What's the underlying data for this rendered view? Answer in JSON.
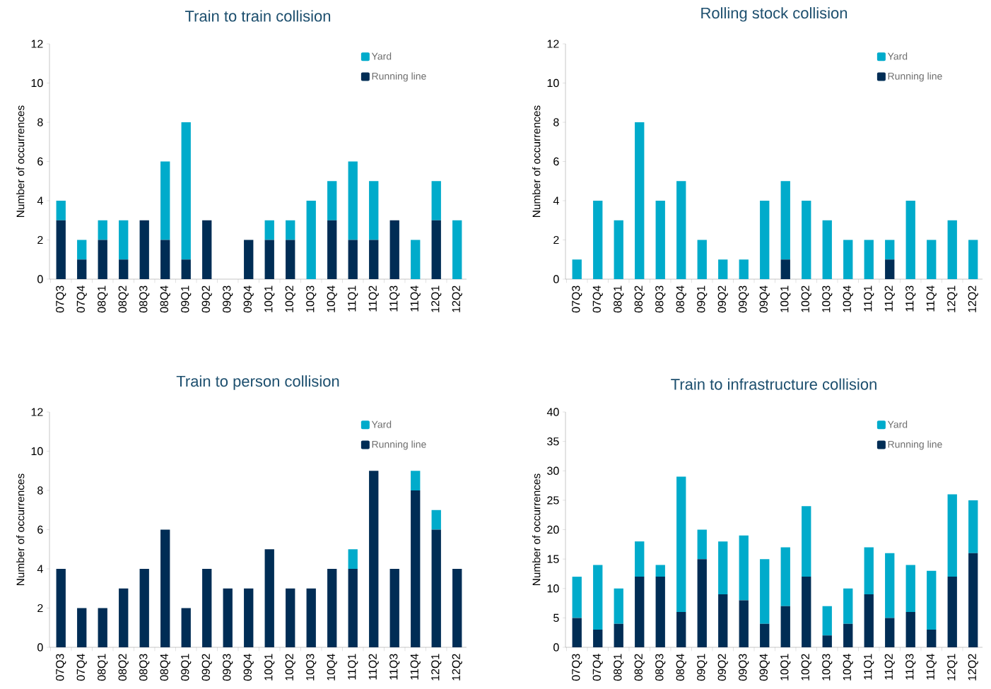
{
  "chart_data": [
    {
      "type": "bar",
      "title": "Train to train collision",
      "ylabel": "Number of occurrences",
      "stacked": true,
      "legend": "top right",
      "categories": [
        "07Q3",
        "07Q4",
        "08Q1",
        "08Q2",
        "08Q3",
        "08Q4",
        "09Q1",
        "09Q2",
        "09Q3",
        "09Q4",
        "10Q1",
        "10Q2",
        "10Q3",
        "10Q4",
        "11Q1",
        "11Q2",
        "11Q3",
        "11Q4",
        "12Q1",
        "12Q2"
      ],
      "ylim": [
        0,
        12
      ],
      "yticks": [
        0,
        2,
        4,
        6,
        8,
        10,
        12
      ],
      "series": [
        {
          "name": "Running line",
          "color": "#002d55",
          "values": [
            3,
            1,
            2,
            1,
            3,
            2,
            1,
            3,
            0,
            2,
            2,
            2,
            0,
            3,
            2,
            2,
            3,
            0,
            3,
            0
          ]
        },
        {
          "name": "Yard",
          "color": "#00abcb",
          "values": [
            1,
            1,
            1,
            2,
            0,
            4,
            7,
            0,
            0,
            0,
            1,
            1,
            4,
            2,
            4,
            3,
            0,
            2,
            2,
            3
          ]
        }
      ]
    },
    {
      "type": "bar",
      "title": "Rolling stock collision",
      "ylabel": "Number of occurrences",
      "stacked": true,
      "legend": "top right",
      "categories": [
        "07Q3",
        "07Q4",
        "08Q1",
        "08Q2",
        "08Q3",
        "08Q4",
        "09Q1",
        "09Q2",
        "09Q3",
        "09Q4",
        "10Q1",
        "10Q2",
        "10Q3",
        "10Q4",
        "11Q1",
        "11Q2",
        "11Q3",
        "11Q4",
        "12Q1",
        "12Q2"
      ],
      "ylim": [
        0,
        12
      ],
      "yticks": [
        0,
        2,
        4,
        6,
        8,
        10,
        12
      ],
      "series": [
        {
          "name": "Running line",
          "color": "#002d55",
          "values": [
            0,
            0,
            0,
            0,
            0,
            0,
            0,
            0,
            0,
            0,
            1,
            0,
            0,
            0,
            0,
            1,
            0,
            0,
            0,
            0
          ]
        },
        {
          "name": "Yard",
          "color": "#00abcb",
          "values": [
            1,
            4,
            3,
            8,
            4,
            5,
            2,
            1,
            1,
            4,
            4,
            4,
            3,
            2,
            2,
            1,
            4,
            2,
            3,
            2
          ]
        }
      ]
    },
    {
      "type": "bar",
      "title": "Train to person collision",
      "ylabel": "Number of occurrences",
      "stacked": true,
      "legend": "top right",
      "categories": [
        "07Q3",
        "07Q4",
        "08Q1",
        "08Q2",
        "08Q3",
        "08Q4",
        "09Q1",
        "09Q2",
        "09Q3",
        "09Q4",
        "10Q1",
        "10Q2",
        "10Q3",
        "10Q4",
        "11Q1",
        "11Q2",
        "11Q3",
        "11Q4",
        "12Q1",
        "12Q2"
      ],
      "ylim": [
        0,
        12
      ],
      "yticks": [
        0,
        2,
        4,
        6,
        8,
        10,
        12
      ],
      "series": [
        {
          "name": "Running line",
          "color": "#002d55",
          "values": [
            4,
            2,
            2,
            3,
            4,
            6,
            2,
            4,
            3,
            3,
            5,
            3,
            3,
            4,
            4,
            9,
            4,
            8,
            6,
            4
          ]
        },
        {
          "name": "Yard",
          "color": "#00abcb",
          "values": [
            0,
            0,
            0,
            0,
            0,
            0,
            0,
            0,
            0,
            0,
            0,
            0,
            0,
            0,
            1,
            0,
            0,
            1,
            1,
            0
          ]
        }
      ]
    },
    {
      "type": "bar",
      "title": "Train to infrastructure collision",
      "ylabel": "Number of occurrences",
      "stacked": true,
      "legend": "top right",
      "categories": [
        "07Q3",
        "07Q4",
        "08Q1",
        "08Q2",
        "08Q3",
        "08Q4",
        "09Q1",
        "09Q2",
        "09Q3",
        "09Q4",
        "10Q1",
        "10Q2",
        "10Q3",
        "10Q4",
        "11Q1",
        "11Q2",
        "11Q3",
        "11Q4",
        "12Q1",
        "12Q2"
      ],
      "ylim": [
        0,
        40
      ],
      "yticks": [
        0,
        5,
        10,
        15,
        20,
        25,
        30,
        35,
        40
      ],
      "series": [
        {
          "name": "Running line",
          "color": "#002d55",
          "values": [
            5,
            3,
            4,
            12,
            12,
            6,
            15,
            9,
            8,
            4,
            7,
            12,
            2,
            4,
            9,
            5,
            6,
            3,
            12,
            16
          ]
        },
        {
          "name": "Yard",
          "color": "#00abcb",
          "values": [
            7,
            11,
            6,
            6,
            2,
            23,
            5,
            9,
            11,
            11,
            10,
            12,
            5,
            6,
            8,
            11,
            8,
            10,
            14,
            9
          ]
        }
      ]
    }
  ]
}
